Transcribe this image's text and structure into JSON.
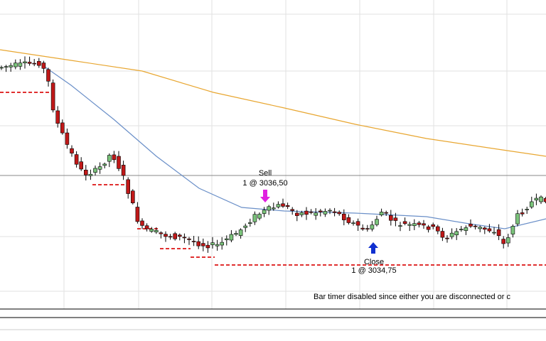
{
  "orders": [
    {
      "action": "Sell",
      "fill": "1 @ 3036,50"
    },
    {
      "action": "Close",
      "fill": "1 @ 3034,75"
    }
  ],
  "status": "Bar timer disabled since either you are disconnected or c"
}
